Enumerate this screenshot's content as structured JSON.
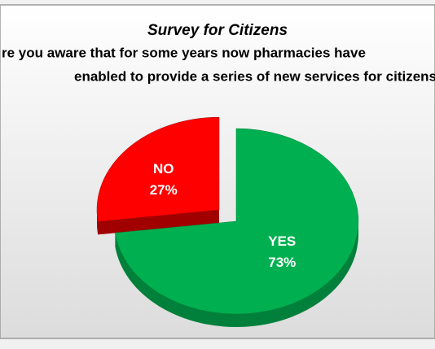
{
  "chart_data": {
    "type": "pie",
    "title": "Survey for Citizens",
    "subtitle": [
      "re you aware that for some years now pharmacies have",
      "enabled to provide a series of new services for citizens"
    ],
    "categories": [
      "YES",
      "NO"
    ],
    "values": [
      73,
      27
    ],
    "value_labels": [
      "73%",
      "27%"
    ],
    "colors": [
      "#00b050",
      "#ff0000"
    ],
    "side_colors": [
      "#00803a",
      "#a00000"
    ],
    "exploded": [
      false,
      true
    ]
  }
}
